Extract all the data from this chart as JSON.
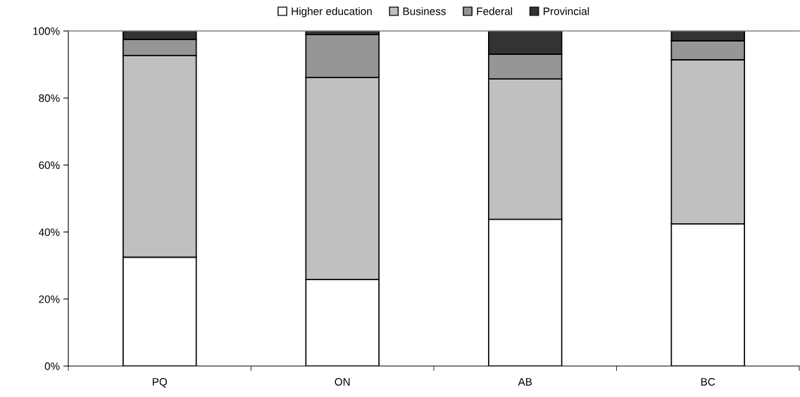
{
  "chart_data": {
    "type": "bar",
    "stacked": true,
    "legend": "top",
    "categories": [
      "PQ",
      "ON",
      "AB",
      "BC"
    ],
    "series": [
      {
        "name": "Higher education",
        "color": "#ffffff",
        "values": [
          32.5,
          25.8,
          43.8,
          42.4
        ]
      },
      {
        "name": "Business",
        "color": "#c0c0c0",
        "values": [
          60.2,
          60.3,
          41.9,
          49.0
        ]
      },
      {
        "name": "Federal",
        "color": "#969696",
        "values": [
          4.8,
          12.8,
          7.4,
          5.7
        ]
      },
      {
        "name": "Provincial",
        "color": "#333333",
        "values": [
          2.5,
          1.1,
          6.9,
          2.9
        ]
      }
    ],
    "ylim": [
      0,
      100
    ],
    "yticks": [
      {
        "value": 0,
        "label": "0%"
      },
      {
        "value": 20,
        "label": "20%"
      },
      {
        "value": 40,
        "label": "40%"
      },
      {
        "value": 60,
        "label": "60%"
      },
      {
        "value": 80,
        "label": "80%"
      },
      {
        "value": 100,
        "label": "100%"
      }
    ]
  }
}
